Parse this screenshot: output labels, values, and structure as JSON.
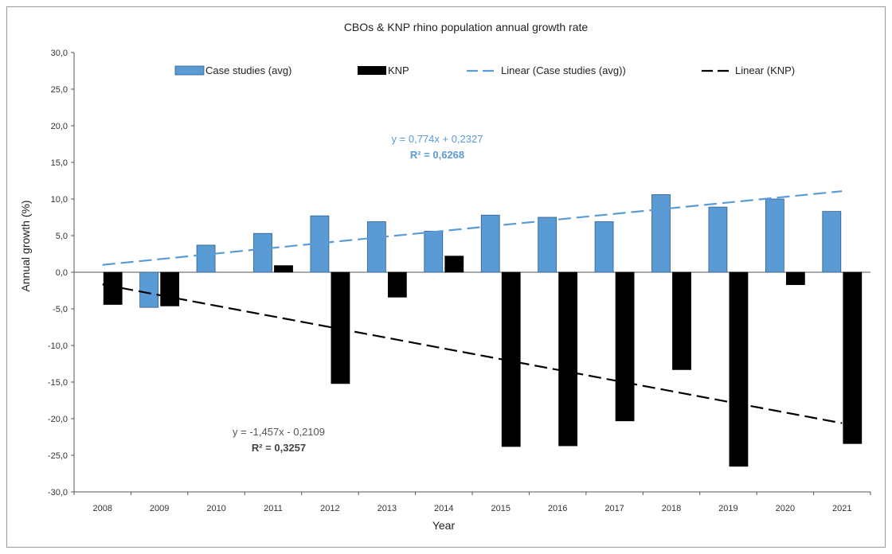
{
  "chart_data": {
    "type": "bar",
    "title": "CBOs & KNP rhino population annual growth rate",
    "xlabel": "Year",
    "ylabel": "Annual growth (%)",
    "ylim": [
      -30,
      30
    ],
    "y_ticks": [
      "30,0",
      "25,0",
      "20,0",
      "15,0",
      "10,0",
      "5,0",
      "0,0",
      "-5,0",
      "-10,0",
      "-15,0",
      "-20,0",
      "-25,0",
      "-30,0"
    ],
    "y_tick_values": [
      30,
      25,
      20,
      15,
      10,
      5,
      0,
      -5,
      -10,
      -15,
      -20,
      -25,
      -30
    ],
    "categories": [
      "2008",
      "2009",
      "2010",
      "2011",
      "2012",
      "2013",
      "2014",
      "2015",
      "2016",
      "2017",
      "2018",
      "2019",
      "2020",
      "2021"
    ],
    "series": [
      {
        "name": "Case studies (avg)",
        "color": "#5b9bd5",
        "values": [
          null,
          -4.8,
          3.7,
          5.3,
          7.7,
          6.9,
          5.6,
          7.8,
          7.5,
          6.9,
          10.6,
          8.9,
          10.0,
          8.3
        ]
      },
      {
        "name": "KNP",
        "color": "#000000",
        "values": [
          -4.4,
          -4.6,
          null,
          0.9,
          -15.2,
          -3.4,
          2.2,
          -23.8,
          -23.7,
          -20.3,
          -13.3,
          -26.5,
          -1.7,
          -23.4
        ]
      }
    ],
    "trendlines": [
      {
        "name": "Linear (Case studies (avg))",
        "color": "#5b9bd5",
        "slope": 0.774,
        "intercept": 0.2327,
        "equation": "y = 0,774x + 0,2327",
        "r2": "R² = 0,6268"
      },
      {
        "name": "Linear (KNP)",
        "color": "#000000",
        "slope": -1.457,
        "intercept": -0.2109,
        "equation": "y = -1,457x - 0,2109",
        "r2": "R² = 0,3257"
      }
    ],
    "legend_position": "top",
    "grid": false
  }
}
